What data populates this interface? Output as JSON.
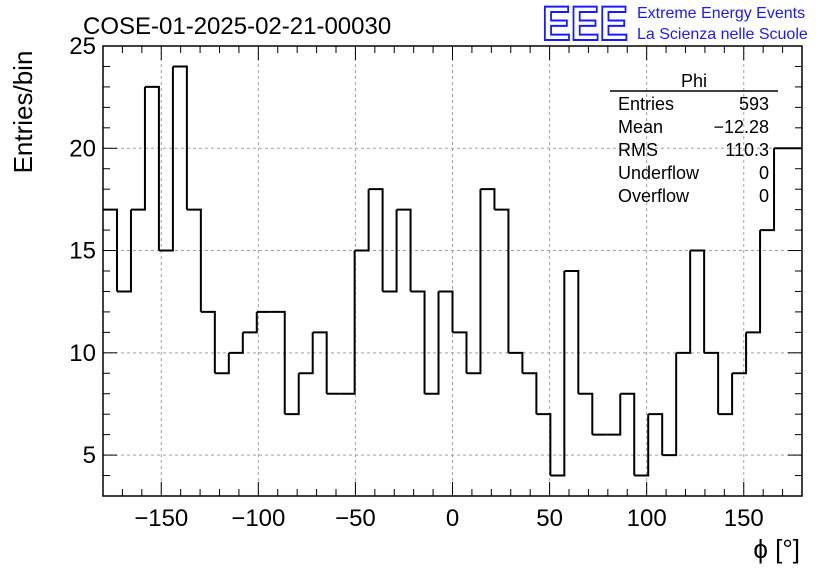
{
  "chart_data": {
    "type": "histogram",
    "title": "COSE-01-2025-02-21-00030",
    "xlabel": "ϕ [°]",
    "ylabel": "Entries/bin",
    "xlim": [
      -180,
      180
    ],
    "ylim": [
      3,
      25
    ],
    "bin_width": 7.2,
    "xticks": [
      -150,
      -100,
      -50,
      0,
      50,
      100,
      150
    ],
    "xtick_labels": [
      "−150",
      "−100",
      "−50",
      "0",
      "50",
      "100",
      "150"
    ],
    "yticks": [
      5,
      10,
      15,
      20,
      25
    ],
    "ytick_labels": [
      "5",
      "10",
      "15",
      "20",
      "25"
    ],
    "grid": true,
    "bin_edges": [
      -180,
      -172.8,
      -165.6,
      -158.4,
      -151.2,
      -144,
      -136.8,
      -129.6,
      -122.4,
      -115.2,
      -108,
      -100.8,
      -93.6,
      -86.4,
      -79.2,
      -72,
      -64.8,
      -57.6,
      -50.4,
      -43.2,
      -36,
      -28.8,
      -21.6,
      -14.4,
      -7.2,
      0,
      7.2,
      14.4,
      21.6,
      28.8,
      36,
      43.2,
      50.4,
      57.6,
      64.8,
      72,
      79.2,
      86.4,
      93.6,
      100.8,
      108,
      115.2,
      122.4,
      129.6,
      136.8,
      144,
      151.2,
      158.4,
      165.6,
      172.8,
      180
    ],
    "values": [
      17,
      13,
      17,
      23,
      15,
      24,
      17,
      12,
      9,
      10,
      11,
      12,
      12,
      7,
      9,
      11,
      8,
      8,
      15,
      18,
      13,
      17,
      13,
      8,
      13,
      11,
      9,
      18,
      17,
      10,
      9,
      7,
      4,
      14,
      8,
      6,
      6,
      8,
      4,
      7,
      5,
      10,
      15,
      10,
      7,
      9,
      11,
      16,
      20,
      20
    ],
    "stats_box": {
      "name": "Phi",
      "rows": [
        {
          "label": "Entries",
          "value": "593"
        },
        {
          "label": "Mean",
          "value": "−12.28"
        },
        {
          "label": "RMS",
          "value": "110.3"
        },
        {
          "label": "Underflow",
          "value": "0"
        },
        {
          "label": "Overflow",
          "value": "0"
        }
      ]
    }
  },
  "logo": {
    "mark": "EEE",
    "line1": "Extreme Energy Events",
    "line2": "La Scienza nelle Scuole",
    "color": "#1a1aff"
  }
}
